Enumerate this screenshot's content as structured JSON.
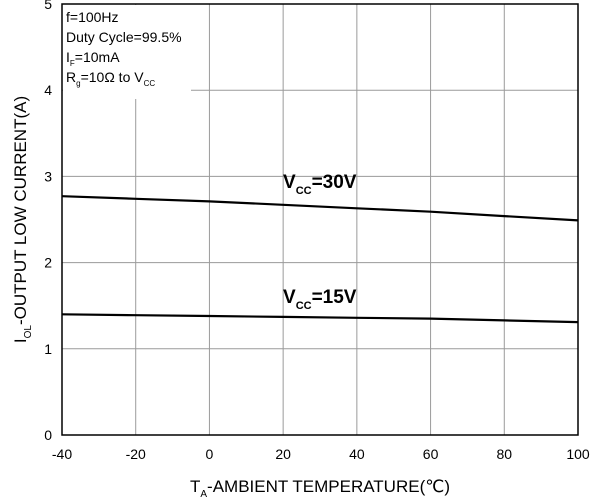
{
  "chart_data": {
    "type": "line",
    "title": "",
    "xlabel": {
      "main": "T",
      "sub": "A",
      "rest": "-AMBIENT TEMPERATURE(℃)"
    },
    "ylabel": {
      "main": "I",
      "sub": "OL",
      "rest": "-OUTPUT LOW CURRENT(A)"
    },
    "xlim": [
      -40,
      100
    ],
    "ylim": [
      0,
      5
    ],
    "xticks": [
      -40,
      -20,
      0,
      20,
      40,
      60,
      80,
      100
    ],
    "yticks": [
      0,
      1,
      2,
      3,
      4,
      5
    ],
    "grid": true,
    "conditions": [
      {
        "main": "f=100Hz",
        "sub": "",
        "rest": ""
      },
      {
        "main": "Duty Cycle=99.5%",
        "sub": "",
        "rest": ""
      },
      {
        "main": "I",
        "sub": "F",
        "rest": "=10mA"
      },
      {
        "main": "R",
        "sub": "g",
        "rest": "=10Ω to V",
        "sub2": "CC"
      }
    ],
    "series": [
      {
        "name": "VCC=30V",
        "label": {
          "main": "V",
          "sub": "CC",
          "rest": "=30V"
        },
        "x": [
          -40,
          -20,
          0,
          20,
          40,
          60,
          80,
          100
        ],
        "values": [
          2.77,
          2.74,
          2.71,
          2.67,
          2.63,
          2.59,
          2.54,
          2.49
        ]
      },
      {
        "name": "VCC=15V",
        "label": {
          "main": "V",
          "sub": "CC",
          "rest": "=15V"
        },
        "x": [
          -40,
          -20,
          0,
          20,
          40,
          60,
          80,
          100
        ],
        "values": [
          1.4,
          1.39,
          1.38,
          1.37,
          1.36,
          1.35,
          1.33,
          1.31
        ]
      }
    ]
  }
}
